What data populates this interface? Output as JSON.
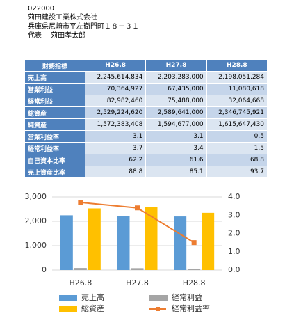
{
  "header": {
    "code": "022000",
    "company": "苅田建設工業株式会社",
    "address": "兵庫県尼崎市平左衛門町１８－３１",
    "representative": "代表　 苅田孝太郎"
  },
  "table": {
    "columns": [
      "財務指標",
      "H26.8",
      "H27.8",
      "H28.8"
    ],
    "rows": [
      [
        "売上高",
        "2,245,614,834",
        "2,203,283,000",
        "2,198,051,284"
      ],
      [
        "営業利益",
        "70,364,927",
        "67,435,000",
        "11,080,618"
      ],
      [
        "経常利益",
        "82,982,460",
        "75,488,000",
        "32,064,668"
      ],
      [
        "総資産",
        "2,529,224,620",
        "2,589,641,000",
        "2,346,745,921"
      ],
      [
        "純資産",
        "1,572,383,408",
        "1,594,677,000",
        "1,615,647,430"
      ],
      [
        "営業利益率",
        "3.1",
        "3.1",
        "0.5"
      ],
      [
        "経常利益率",
        "3.7",
        "3.4",
        "1.5"
      ],
      [
        "自己資本比率",
        "62.2",
        "61.6",
        "68.8"
      ],
      [
        "売上資産比率",
        "88.8",
        "85.1",
        "93.7"
      ]
    ]
  },
  "chart_data": {
    "type": "bar",
    "categories": [
      "H26.8",
      "H27.8",
      "H28.8"
    ],
    "series": [
      {
        "name": "売上高",
        "color": "#5b9bd5",
        "values": [
          2245.6,
          2203.3,
          2198.1
        ]
      },
      {
        "name": "経常利益",
        "color": "#a5a5a5",
        "values": [
          83.0,
          75.5,
          32.1
        ]
      },
      {
        "name": "総資産",
        "color": "#ffc000",
        "values": [
          2529.2,
          2589.6,
          2346.7
        ]
      },
      {
        "name": "経常利益率",
        "color": "#ed7d31",
        "type": "line",
        "axis": "y2",
        "values": [
          3.7,
          3.4,
          1.5
        ]
      }
    ],
    "ylim": [
      0,
      3000
    ],
    "yticks": [
      0,
      {
        "value": 1000,
        "label": "1,000"
      },
      {
        "value": 2000,
        "label": "2,000"
      },
      {
        "value": 3000,
        "label": "3,000"
      }
    ],
    "y2lim": [
      0,
      4
    ],
    "y2ticks": [
      {
        "value": 0,
        "label": "0.0"
      },
      {
        "value": 1,
        "label": "1.0"
      },
      {
        "value": 2,
        "label": "2.0"
      },
      {
        "value": 3,
        "label": "3.0"
      },
      {
        "value": 4,
        "label": "4.0"
      }
    ],
    "grid": true
  }
}
